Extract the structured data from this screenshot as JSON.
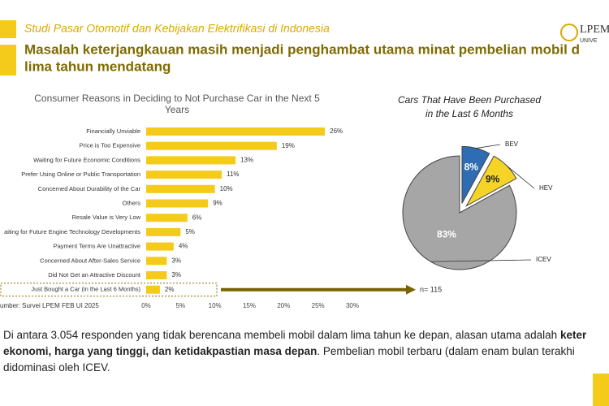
{
  "header": {
    "subtitle": "Studi Pasar Otomotif dan Kebijakan Elektrifikasi di Indonesia",
    "title_lines": [
      "Masalah keterjangkauan masih menjadi penghambat utama minat pembelian mobil d",
      "lima tahun mendatang"
    ],
    "logo": "LPEM",
    "logo_sub": "UNIVE"
  },
  "chart_data": [
    {
      "type": "hbar",
      "title": "Consumer Reasons in Deciding to Not Purchase Car in the Next 5 Years",
      "categories": [
        "Financially Unviable",
        "Price is Too Expensive",
        "Waiting for Future Economic Conditions",
        "Prefer Using Online or Public Transportation",
        "Concerned About Durability of the Car",
        "Others",
        "Resale Value is Very Low",
        "aiting for Future Engine Technology Developments",
        "Payment Terms Are Unattractive",
        "Concerned About After-Sales Service",
        "Did Not Get an Attractive Discount",
        "Just Bought a Car (in the Last 6 Months)"
      ],
      "values": [
        26,
        19,
        13,
        11,
        10,
        9,
        6,
        5,
        4,
        3,
        3,
        2
      ],
      "value_labels": [
        "26%",
        "19%",
        "13%",
        "11%",
        "10%",
        "9%",
        "6%",
        "5%",
        "4%",
        "3%",
        "3%",
        "2%"
      ],
      "color": "#f5cb1b",
      "xlim": [
        0,
        30
      ],
      "xticks": [
        {
          "value": 0,
          "label": "0%"
        },
        {
          "value": 5,
          "label": "5%"
        },
        {
          "value": 10,
          "label": "10%"
        },
        {
          "value": 15,
          "label": "15%"
        },
        {
          "value": 20,
          "label": "20%"
        },
        {
          "value": 25,
          "label": "25%"
        },
        {
          "value": 30,
          "label": "30%"
        }
      ],
      "source": "umber: Survei LPEM FEB UI 2025",
      "annotation": "n= 115"
    },
    {
      "type": "pie",
      "title": "Cars That Have Been Purchased in the Last 6 Months",
      "categories": [
        "BEV",
        "HEV",
        "ICEV"
      ],
      "values": [
        8,
        9,
        83
      ],
      "value_labels": [
        "8%",
        "9%",
        "83%"
      ],
      "colors": [
        "#2e6db4",
        "#f5d327",
        "#a6a6a6"
      ]
    }
  ],
  "body": [
    [
      {
        "text": "Di antara 3.054 responden yang tidak berencana membeli mobil dalam lima tahun ke depan, alasan utama adalah ",
        "bold": false
      },
      {
        "text": "keter",
        "bold": true
      }
    ],
    [
      {
        "text": "ekonomi, harga yang tinggi, dan ketidakpastian masa depan",
        "bold": true
      },
      {
        "text": ". Pembelian mobil terbaru (dalam enam bulan terakhi",
        "bold": false
      }
    ],
    [
      {
        "text": "didominasi oleh ICEV.",
        "bold": false
      }
    ]
  ]
}
